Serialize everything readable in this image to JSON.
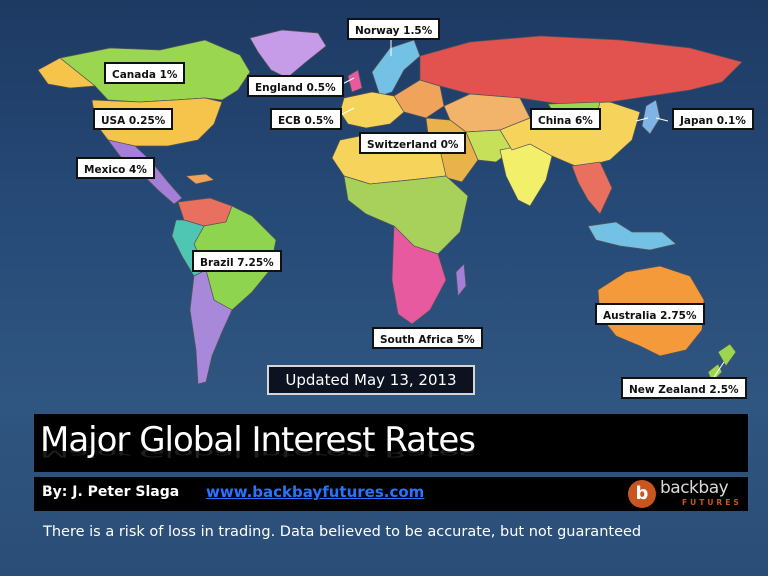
{
  "labels": [
    {
      "id": "norway",
      "text": "Norway 1.5%"
    },
    {
      "id": "canada",
      "text": "Canada 1%"
    },
    {
      "id": "england",
      "text": "England 0.5%"
    },
    {
      "id": "usa",
      "text": "USA 0.25%"
    },
    {
      "id": "ecb",
      "text": "ECB 0.5%"
    },
    {
      "id": "china",
      "text": "China  6%"
    },
    {
      "id": "japan",
      "text": "Japan 0.1%"
    },
    {
      "id": "switzerland",
      "text": "Switzerland  0%"
    },
    {
      "id": "mexico",
      "text": "Mexico  4%"
    },
    {
      "id": "brazil",
      "text": "Brazil  7.25%"
    },
    {
      "id": "australia",
      "text": "Australia  2.75%"
    },
    {
      "id": "south_africa",
      "text": "South Africa  5%"
    },
    {
      "id": "new_zealand",
      "text": "New Zealand  2.5%"
    }
  ],
  "updated": "Updated May 13, 2013",
  "title": "Major Global Interest Rates",
  "byline": {
    "author": "By: J. Peter Slaga",
    "link": "www.backbayfutures.com"
  },
  "logo": {
    "letter": "b",
    "name": "backbay",
    "sub": "FUTURES"
  },
  "disclaimer": "There is a risk of loss in trading. Data believed to be accurate, but not guaranteed",
  "colors": {
    "ocean": "#274b78",
    "russia": "#e2524f",
    "usa": "#f6c44a",
    "canada": "#9ad64f",
    "greenland": "#c69be8",
    "brazil": "#8fd44e",
    "australia": "#f59a3b",
    "china": "#f6d35a",
    "africa": "#a7d15a",
    "logo_orange": "#c9561f"
  }
}
